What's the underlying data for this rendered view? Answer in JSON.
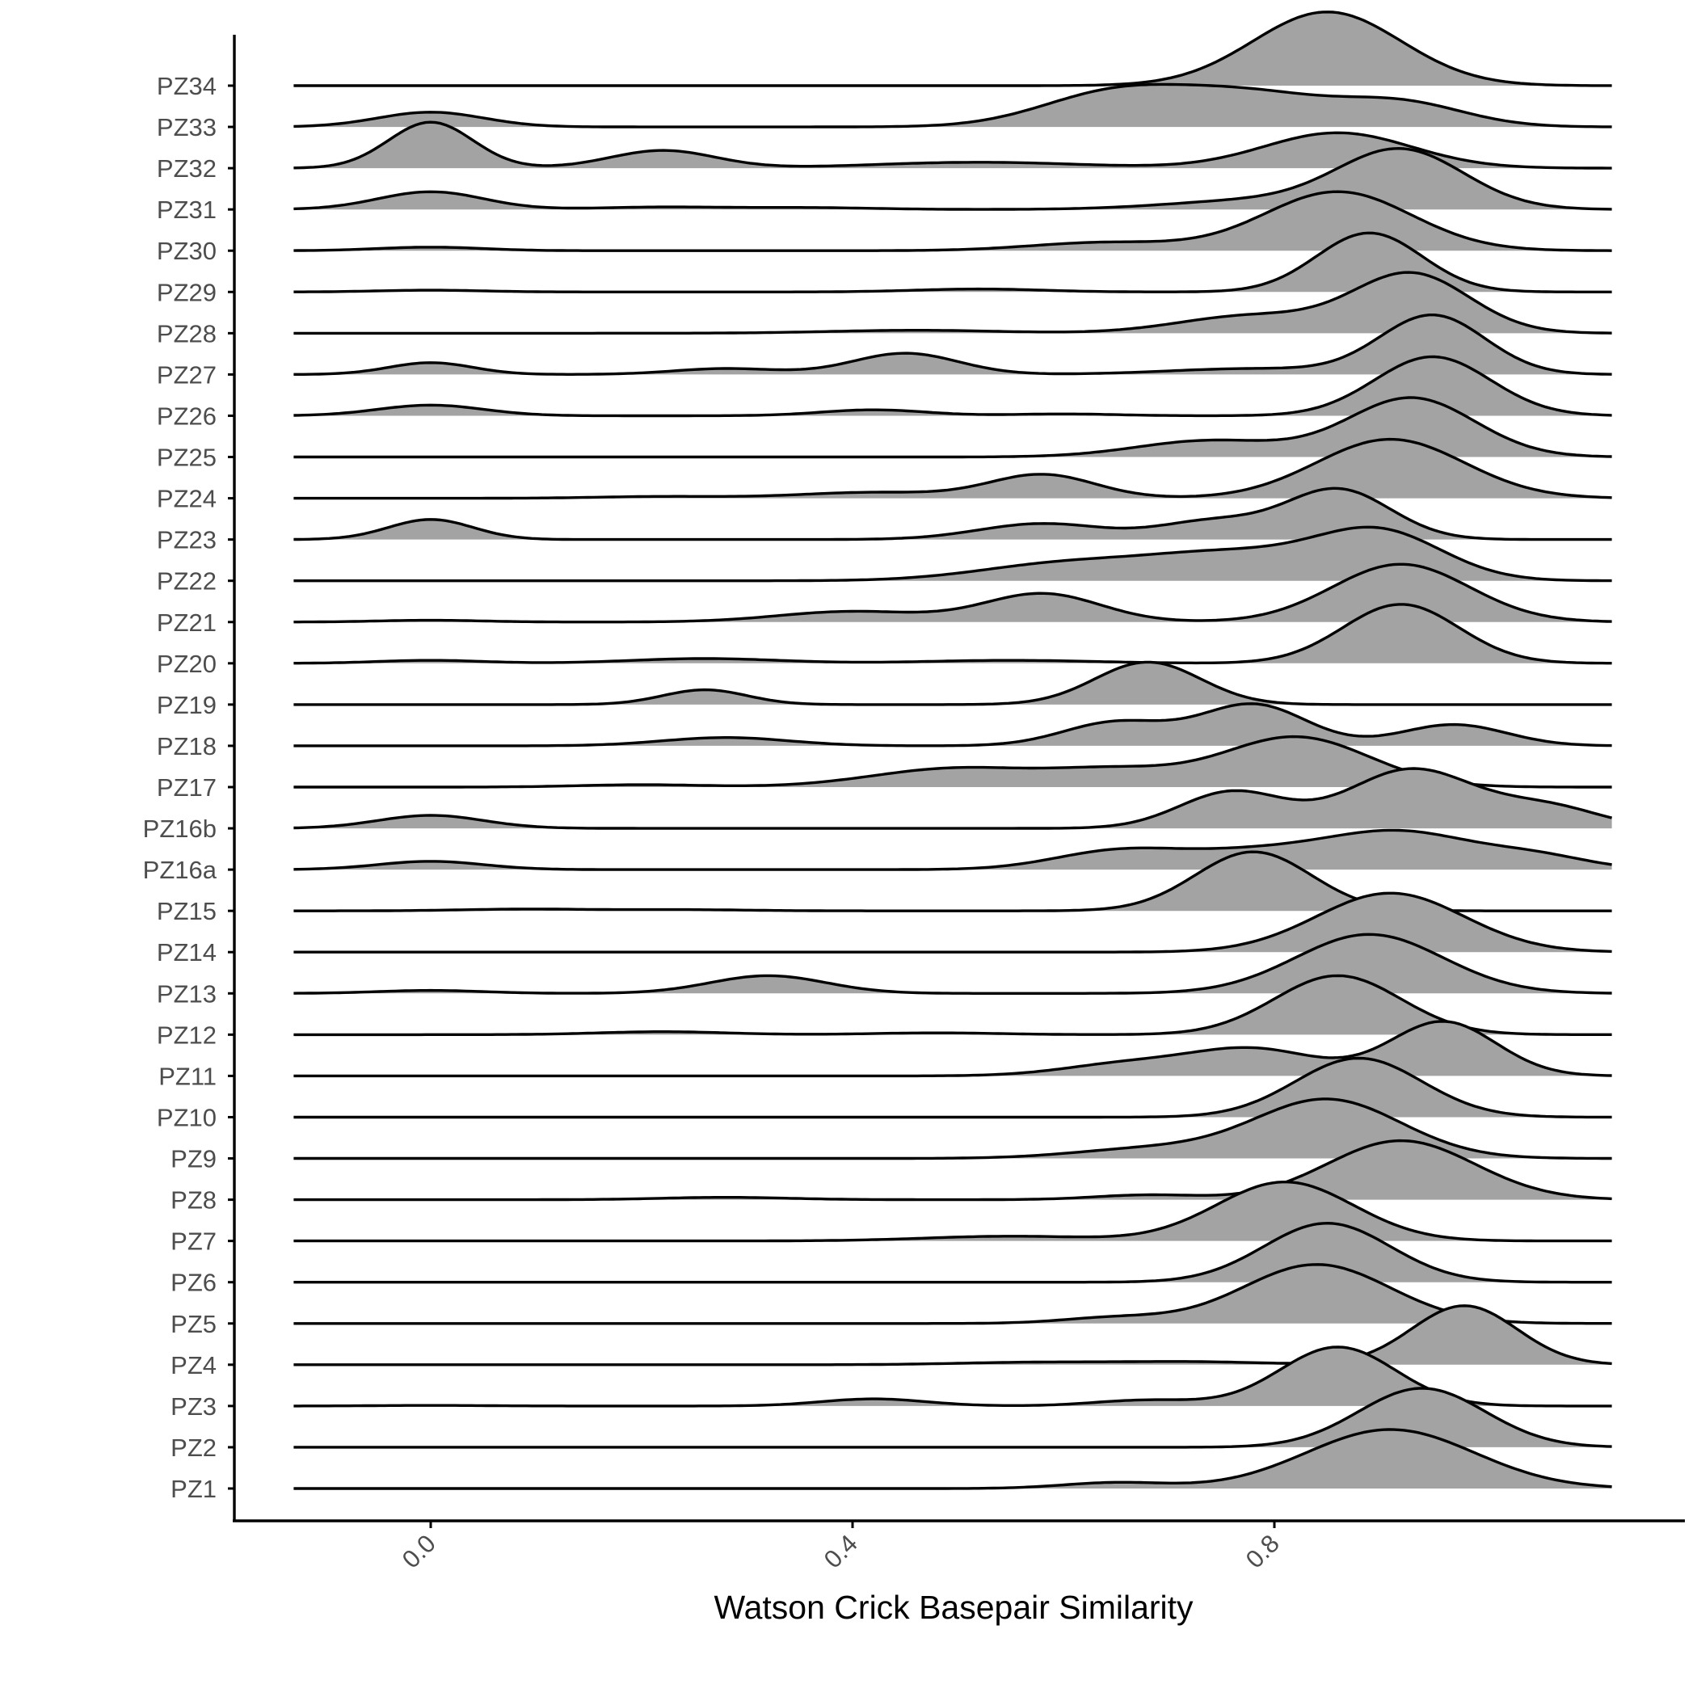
{
  "chart_data": {
    "type": "ridgeline",
    "xlabel": "Watson Crick Basepair Similarity",
    "ylabel": "",
    "x_ticks": [
      0.0,
      0.4,
      0.8
    ],
    "x_tick_labels": [
      "0.0",
      "0.4",
      "0.8"
    ],
    "xlim": [
      -0.19,
      1.33
    ],
    "density_range": [
      -0.13,
      1.12
    ],
    "bandwidth": 0.05,
    "fill_color": "#a3a3a3",
    "line_color": "#000000",
    "grid": false,
    "series": [
      {
        "name": "PZ1",
        "peaks": [
          [
            0.65,
            0.1,
            0.05
          ],
          [
            0.91,
            1.0,
            0.08
          ]
        ]
      },
      {
        "name": "PZ2",
        "peaks": [
          [
            0.94,
            1.0,
            0.06
          ]
        ]
      },
      {
        "name": "PZ3",
        "peaks": [
          [
            0.0,
            0.01,
            0.05
          ],
          [
            0.42,
            0.12,
            0.05
          ],
          [
            0.68,
            0.1,
            0.05
          ],
          [
            0.86,
            1.0,
            0.055
          ]
        ]
      },
      {
        "name": "PZ4",
        "peaks": [
          [
            0.57,
            0.04,
            0.07
          ],
          [
            0.72,
            0.05,
            0.07
          ],
          [
            0.98,
            1.0,
            0.05
          ]
        ]
      },
      {
        "name": "PZ5",
        "peaks": [
          [
            0.65,
            0.1,
            0.05
          ],
          [
            0.84,
            1.0,
            0.07
          ]
        ]
      },
      {
        "name": "PZ6",
        "peaks": [
          [
            0.85,
            1.0,
            0.06
          ]
        ]
      },
      {
        "name": "PZ7",
        "peaks": [
          [
            0.55,
            0.08,
            0.08
          ],
          [
            0.81,
            1.0,
            0.065
          ]
        ]
      },
      {
        "name": "PZ8",
        "peaks": [
          [
            0.28,
            0.04,
            0.06
          ],
          [
            0.68,
            0.08,
            0.05
          ],
          [
            0.92,
            1.0,
            0.07
          ]
        ]
      },
      {
        "name": "PZ9",
        "peaks": [
          [
            0.68,
            0.16,
            0.07
          ],
          [
            0.85,
            1.0,
            0.07
          ]
        ]
      },
      {
        "name": "PZ10",
        "peaks": [
          [
            0.88,
            1.0,
            0.06
          ]
        ]
      },
      {
        "name": "PZ11",
        "peaks": [
          [
            0.66,
            0.2,
            0.06
          ],
          [
            0.78,
            0.45,
            0.06
          ],
          [
            0.96,
            0.92,
            0.05
          ]
        ]
      },
      {
        "name": "PZ12",
        "peaks": [
          [
            0.22,
            0.05,
            0.06
          ],
          [
            0.48,
            0.03,
            0.06
          ],
          [
            0.86,
            1.0,
            0.06
          ]
        ]
      },
      {
        "name": "PZ13",
        "peaks": [
          [
            0.0,
            0.05,
            0.05
          ],
          [
            0.32,
            0.3,
            0.055
          ],
          [
            0.89,
            1.0,
            0.07
          ]
        ]
      },
      {
        "name": "PZ14",
        "peaks": [
          [
            0.91,
            1.0,
            0.07
          ]
        ]
      },
      {
        "name": "PZ15",
        "peaks": [
          [
            0.09,
            0.03,
            0.06
          ],
          [
            0.24,
            0.02,
            0.06
          ],
          [
            0.78,
            1.0,
            0.055
          ]
        ]
      },
      {
        "name": "PZ16a",
        "peaks": [
          [
            0.0,
            0.14,
            0.05
          ],
          [
            0.65,
            0.3,
            0.06
          ],
          [
            0.78,
            0.28,
            0.07
          ],
          [
            0.92,
            0.62,
            0.07
          ],
          [
            1.05,
            0.2,
            0.05
          ]
        ]
      },
      {
        "name": "PZ16b",
        "peaks": [
          [
            0.0,
            0.22,
            0.05
          ],
          [
            0.76,
            0.62,
            0.05
          ],
          [
            0.93,
            1.0,
            0.06
          ],
          [
            1.06,
            0.35,
            0.05
          ]
        ]
      },
      {
        "name": "PZ17",
        "peaks": [
          [
            0.2,
            0.04,
            0.06
          ],
          [
            0.5,
            0.32,
            0.08
          ],
          [
            0.65,
            0.25,
            0.06
          ],
          [
            0.82,
            0.85,
            0.07
          ]
        ]
      },
      {
        "name": "PZ18",
        "peaks": [
          [
            0.28,
            0.14,
            0.06
          ],
          [
            0.65,
            0.4,
            0.05
          ],
          [
            0.78,
            0.7,
            0.05
          ],
          [
            0.97,
            0.36,
            0.05
          ]
        ]
      },
      {
        "name": "PZ19",
        "peaks": [
          [
            0.26,
            0.25,
            0.04
          ],
          [
            0.68,
            0.72,
            0.05
          ]
        ]
      },
      {
        "name": "PZ20",
        "peaks": [
          [
            0.0,
            0.05,
            0.05
          ],
          [
            0.26,
            0.08,
            0.07
          ],
          [
            0.55,
            0.05,
            0.08
          ],
          [
            0.92,
            1.0,
            0.055
          ]
        ]
      },
      {
        "name": "PZ21",
        "peaks": [
          [
            0.0,
            0.03,
            0.05
          ],
          [
            0.4,
            0.18,
            0.07
          ],
          [
            0.58,
            0.48,
            0.055
          ],
          [
            0.92,
            0.98,
            0.065
          ]
        ]
      },
      {
        "name": "PZ22",
        "peaks": [
          [
            0.6,
            0.28,
            0.08
          ],
          [
            0.76,
            0.45,
            0.08
          ],
          [
            0.9,
            0.8,
            0.06
          ]
        ]
      },
      {
        "name": "PZ23",
        "peaks": [
          [
            0.0,
            0.34,
            0.04
          ],
          [
            0.58,
            0.27,
            0.06
          ],
          [
            0.74,
            0.3,
            0.05
          ],
          [
            0.86,
            0.85,
            0.05
          ]
        ]
      },
      {
        "name": "PZ24",
        "peaks": [
          [
            0.22,
            0.03,
            0.06
          ],
          [
            0.42,
            0.1,
            0.07
          ],
          [
            0.58,
            0.4,
            0.05
          ],
          [
            0.91,
            1.0,
            0.07
          ]
        ]
      },
      {
        "name": "PZ25",
        "peaks": [
          [
            0.74,
            0.28,
            0.07
          ],
          [
            0.93,
            1.0,
            0.06
          ]
        ]
      },
      {
        "name": "PZ26",
        "peaks": [
          [
            0.0,
            0.18,
            0.05
          ],
          [
            0.42,
            0.1,
            0.05
          ],
          [
            0.6,
            0.03,
            0.05
          ],
          [
            0.95,
            1.0,
            0.055
          ]
        ]
      },
      {
        "name": "PZ27",
        "peaks": [
          [
            0.0,
            0.2,
            0.04
          ],
          [
            0.28,
            0.1,
            0.05
          ],
          [
            0.45,
            0.36,
            0.05
          ],
          [
            0.78,
            0.1,
            0.08
          ],
          [
            0.95,
            1.0,
            0.05
          ]
        ]
      },
      {
        "name": "PZ28",
        "peaks": [
          [
            0.46,
            0.05,
            0.08
          ],
          [
            0.78,
            0.3,
            0.07
          ],
          [
            0.93,
            1.0,
            0.055
          ]
        ]
      },
      {
        "name": "PZ29",
        "peaks": [
          [
            0.0,
            0.03,
            0.05
          ],
          [
            0.52,
            0.05,
            0.06
          ],
          [
            0.89,
            1.0,
            0.05
          ]
        ]
      },
      {
        "name": "PZ30",
        "peaks": [
          [
            0.0,
            0.06,
            0.05
          ],
          [
            0.64,
            0.14,
            0.07
          ],
          [
            0.86,
            1.0,
            0.07
          ]
        ]
      },
      {
        "name": "PZ31",
        "peaks": [
          [
            0.0,
            0.3,
            0.05
          ],
          [
            0.22,
            0.04,
            0.06
          ],
          [
            0.36,
            0.03,
            0.06
          ],
          [
            0.78,
            0.15,
            0.08
          ],
          [
            0.92,
            1.0,
            0.06
          ]
        ]
      },
      {
        "name": "PZ32",
        "peaks": [
          [
            0.0,
            0.78,
            0.04
          ],
          [
            0.22,
            0.3,
            0.05
          ],
          [
            0.52,
            0.1,
            0.1
          ],
          [
            0.86,
            0.6,
            0.07
          ]
        ]
      },
      {
        "name": "PZ33",
        "peaks": [
          [
            0.0,
            0.25,
            0.05
          ],
          [
            0.65,
            0.58,
            0.07
          ],
          [
            0.78,
            0.52,
            0.07
          ],
          [
            0.92,
            0.4,
            0.06
          ]
        ]
      },
      {
        "name": "PZ34",
        "peaks": [
          [
            0.85,
            1.25,
            0.07
          ]
        ]
      }
    ]
  }
}
